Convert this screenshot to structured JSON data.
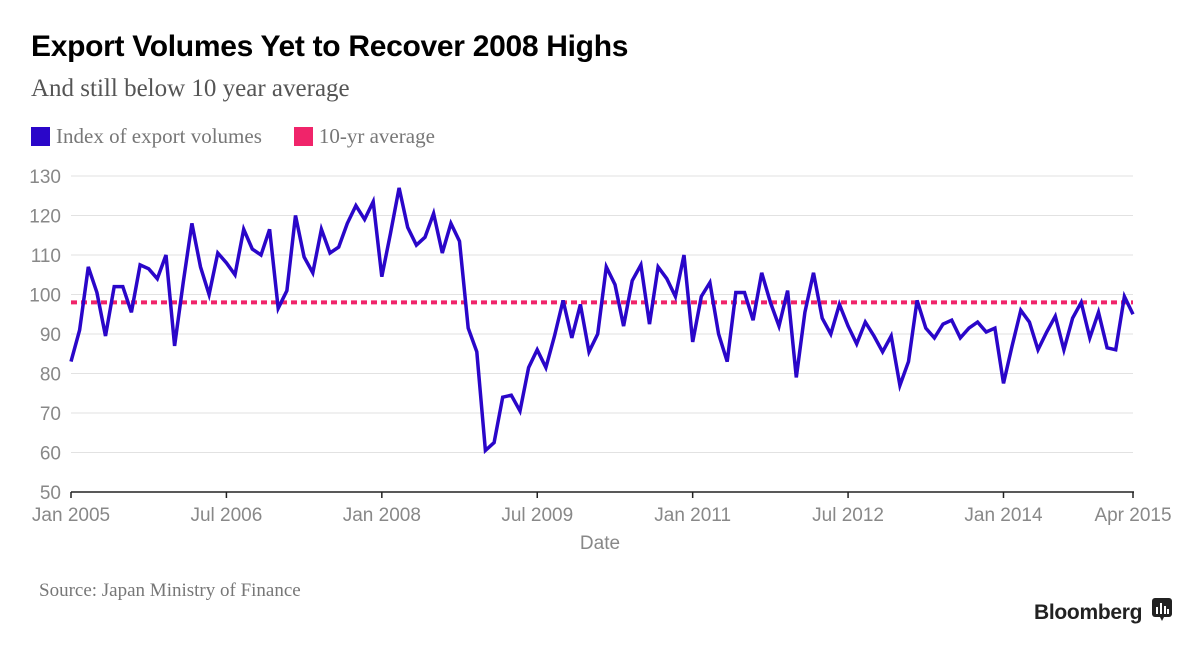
{
  "header": {
    "title": "Export Volumes Yet to Recover 2008 Highs",
    "subtitle": "And still below 10 year average"
  },
  "legend": [
    {
      "label": "Index of export volumes",
      "color": "#2a06c9"
    },
    {
      "label": "10-yr average",
      "color": "#f0246a"
    }
  ],
  "footer": {
    "source": "Source: Japan Ministry of Finance",
    "brand": "Bloomberg",
    "brand_icon": "bloomberg-chart-icon"
  },
  "chart_data": {
    "type": "line",
    "title": "Export Volumes Yet to Recover 2008 Highs",
    "subtitle": "And still below 10 year average",
    "xlabel": "Date",
    "ylabel": "",
    "ylim": [
      50,
      130
    ],
    "yticks": [
      50,
      60,
      70,
      80,
      90,
      100,
      110,
      120,
      130
    ],
    "x_start": "Jan 2005",
    "x_end": "Apr 2015",
    "x_frequency": "monthly",
    "xticks": [
      {
        "label": "Jan 2005",
        "month_index": 0
      },
      {
        "label": "Jul 2006",
        "month_index": 18
      },
      {
        "label": "Jan 2008",
        "month_index": 36
      },
      {
        "label": "Jul 2009",
        "month_index": 54
      },
      {
        "label": "Jan 2011",
        "month_index": 72
      },
      {
        "label": "Jul 2012",
        "month_index": 90
      },
      {
        "label": "Jan 2014",
        "month_index": 108
      },
      {
        "label": "Apr 2015",
        "month_index": 123
      }
    ],
    "grid": true,
    "legend_position": "top-left",
    "series": [
      {
        "name": "Index of export volumes",
        "color": "#2a06c9",
        "style": "solid",
        "values": [
          83,
          91,
          107,
          100.5,
          89.5,
          102,
          102,
          95.5,
          107.5,
          106.5,
          104,
          110,
          87,
          103,
          118,
          107,
          100,
          110.5,
          108,
          105,
          116.5,
          111.5,
          110,
          116.5,
          96.5,
          101,
          120,
          109.5,
          105.5,
          116.5,
          110.5,
          112,
          118,
          122.5,
          119,
          123.5,
          104.5,
          115.5,
          127,
          117,
          112.5,
          114.5,
          120.5,
          110.5,
          118,
          113.5,
          91.5,
          85.5,
          60.5,
          62.5,
          74,
          74.5,
          70.5,
          81.5,
          86,
          81.5,
          89.5,
          98.5,
          89,
          97.5,
          85.5,
          90,
          107,
          102.5,
          92,
          103.5,
          107.5,
          92.5,
          107,
          104,
          99.5,
          110,
          88,
          99.5,
          103,
          90,
          83,
          100.5,
          100.5,
          93.5,
          105.5,
          98,
          92,
          101,
          79,
          95.5,
          105.5,
          94,
          90,
          97.5,
          92,
          87.5,
          93,
          89.5,
          85.5,
          89.5,
          77,
          83,
          98.5,
          91.5,
          89,
          92.5,
          93.5,
          89,
          91.5,
          93,
          90.5,
          91.5,
          77.5,
          87,
          96,
          93,
          86,
          90.5,
          94.5,
          86,
          94,
          98,
          89,
          95.5,
          86.5,
          86,
          99.5,
          95
        ]
      },
      {
        "name": "10-yr average",
        "color": "#f0246a",
        "style": "dotted",
        "value": 98
      }
    ]
  }
}
